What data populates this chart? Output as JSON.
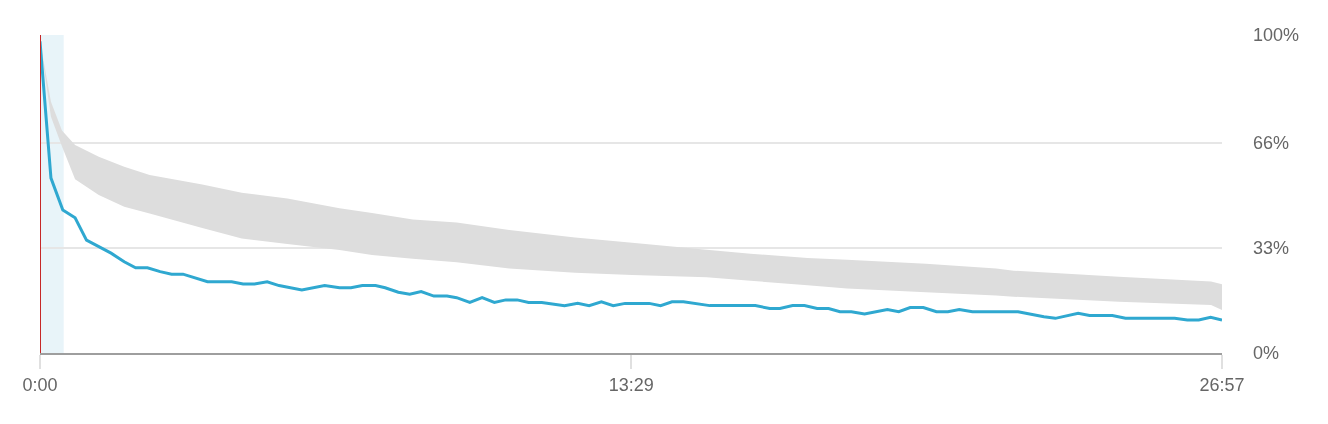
{
  "chart_data": {
    "type": "area",
    "xlim": [
      0,
      26.95
    ],
    "xticks": [
      {
        "value": 0,
        "label": "0:00"
      },
      {
        "value": 13.483,
        "label": "13:29"
      },
      {
        "value": 26.95,
        "label": "26:57"
      }
    ],
    "ylim": [
      0,
      100
    ],
    "yticks": [
      {
        "value": 0,
        "label": "0%"
      },
      {
        "value": 33,
        "label": "33%"
      },
      {
        "value": 66,
        "label": "66%"
      },
      {
        "value": 100,
        "label": "100%"
      }
    ],
    "grid": "y",
    "series": [
      {
        "color": "#dddddd",
        "x": [
          0,
          0.25,
          0.5,
          0.8,
          1.34,
          1.92,
          2.5,
          3.7,
          4.6,
          5.64,
          6.83,
          7.57,
          8.5,
          9.5,
          10.7,
          12.2,
          13.5,
          15.2,
          16.2,
          17.5,
          18.4,
          20.2,
          21.8,
          22.2,
          24.6,
          26.7,
          26.95
        ],
        "values": [
          null,
          null,
          null,
          null,
          null,
          null,
          null,
          null,
          null,
          null,
          null,
          null,
          null,
          null,
          null,
          null,
          null,
          null,
          null,
          null,
          null,
          null,
          null,
          null,
          null,
          null,
          null
        ],
        "upper": [
          98,
          79,
          70,
          65.4,
          61.7,
          58.6,
          56,
          53,
          50.4,
          48.6,
          45.5,
          44,
          42,
          41,
          38.7,
          36.3,
          34.7,
          32.5,
          31.2,
          29.9,
          29.3,
          28.1,
          26.6,
          25.9,
          24,
          22.5,
          21.6
        ],
        "lower": [
          98,
          74.3,
          65,
          54.6,
          49.7,
          46,
          43.9,
          39.3,
          36,
          34.3,
          32.4,
          30.8,
          29.6,
          28.5,
          26.6,
          25.2,
          24.5,
          23.8,
          22.7,
          21.3,
          20.3,
          19.1,
          18.1,
          17.7,
          16.1,
          15.1,
          13.5
        ]
      },
      {
        "type": "line",
        "color": "#2fa8d0",
        "x": [
          0,
          0.25,
          0.52,
          0.8,
          1.06,
          1.62,
          1.92,
          2.18,
          2.45,
          2.74,
          3.0,
          3.26,
          3.82,
          4.37,
          4.63,
          4.89,
          5.18,
          5.45,
          5.97,
          6.49,
          6.83,
          7.09,
          7.35,
          7.65,
          7.87,
          8.17,
          8.43,
          8.69,
          8.98,
          9.28,
          9.5,
          9.8,
          10.08,
          10.36,
          10.62,
          10.88,
          11.14,
          11.44,
          11.96,
          12.26,
          12.52,
          12.8,
          13.07,
          13.34,
          13.89,
          14.15,
          14.41,
          14.67,
          15.27,
          16.31,
          16.64,
          16.87,
          17.16,
          17.43,
          17.72,
          17.98,
          18.24,
          18.5,
          18.8,
          19.32,
          19.58,
          19.84,
          20.14,
          20.44,
          20.7,
          20.96,
          21.26,
          22.3,
          22.89,
          23.15,
          23.67,
          23.93,
          24.45,
          24.75,
          25.87,
          26.16,
          26.42,
          26.69,
          26.95
        ],
        "values": [
          98,
          55,
          45,
          42.5,
          35.5,
          31.4,
          28.7,
          26.8,
          26.8,
          25.6,
          24.8,
          24.8,
          22.4,
          22.4,
          21.7,
          21.7,
          22.4,
          21.2,
          19.8,
          21.2,
          20.5,
          20.5,
          21.2,
          21.2,
          20.5,
          19.1,
          18.5,
          19.3,
          17.9,
          17.9,
          17.4,
          15.9,
          17.4,
          15.9,
          16.7,
          16.7,
          15.9,
          15.9,
          14.9,
          15.6,
          14.9,
          16.1,
          14.9,
          15.6,
          15.6,
          14.9,
          16.1,
          16.1,
          14.9,
          14.9,
          14.0,
          14.0,
          14.9,
          14.9,
          14.0,
          14.0,
          13.0,
          13.0,
          12.3,
          13.7,
          13.0,
          14.3,
          14.3,
          13.0,
          13.0,
          13.7,
          13.0,
          13.0,
          11.4,
          10.9,
          12.5,
          11.8,
          11.8,
          10.9,
          10.9,
          10.4,
          10.4,
          11.2,
          10.4
        ]
      }
    ],
    "ref_lines": [
      {
        "axis": "x",
        "value": 0,
        "color": "#c62828"
      }
    ],
    "bands": [
      {
        "axis": "x",
        "from": 0,
        "to": 0.54,
        "color": "#e8f4f9"
      }
    ]
  }
}
